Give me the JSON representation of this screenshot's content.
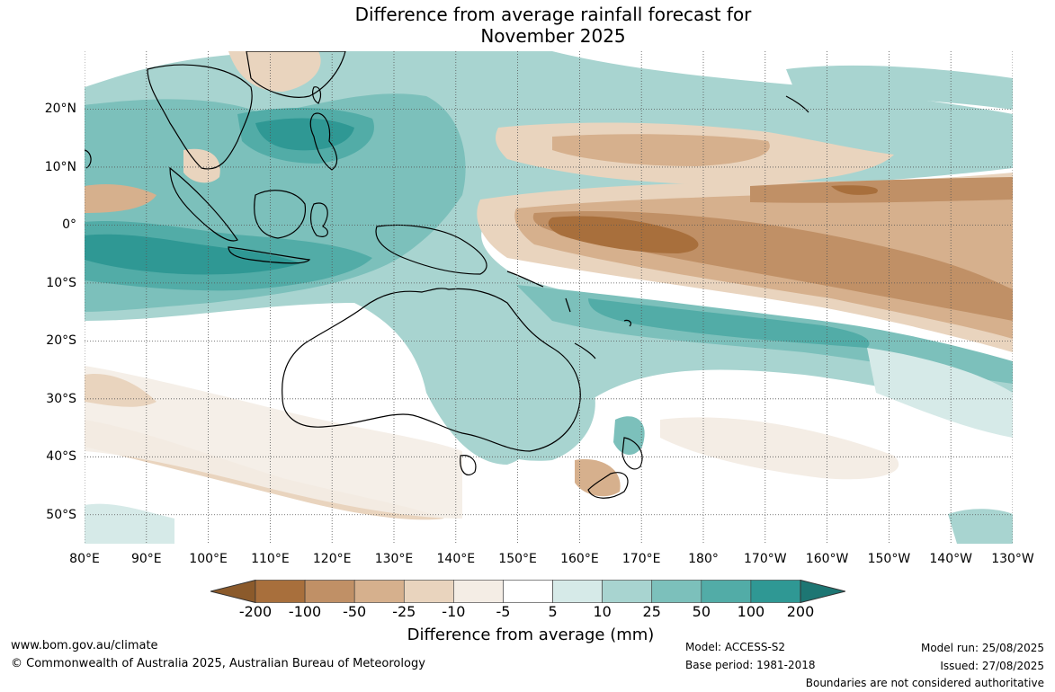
{
  "title": {
    "line1": "Difference from average rainfall forecast for",
    "line2": "November 2025"
  },
  "map": {
    "lon_range_deg": [
      80,
      230
    ],
    "lat_range_deg": [
      -55,
      30
    ],
    "lat_labels": [
      "20°N",
      "10°N",
      "0°",
      "10°S",
      "20°S",
      "30°S",
      "40°S",
      "50°S"
    ],
    "lat_values": [
      20,
      10,
      0,
      -10,
      -20,
      -30,
      -40,
      -50
    ],
    "lon_labels": [
      "80°E",
      "90°E",
      "100°E",
      "110°E",
      "120°E",
      "130°E",
      "140°E",
      "150°E",
      "160°E",
      "170°E",
      "180°",
      "170°W",
      "160°W",
      "150°W",
      "140°W",
      "130°W"
    ],
    "lon_values": [
      80,
      90,
      100,
      110,
      120,
      130,
      140,
      150,
      160,
      170,
      180,
      190,
      200,
      210,
      220,
      230
    ],
    "gridlines": "dotted"
  },
  "colorbar": {
    "ticks": [
      "-200",
      "-100",
      "-50",
      "-25",
      "-10",
      "-5",
      "5",
      "10",
      "25",
      "50",
      "100",
      "200"
    ],
    "colors": [
      "#8b5a2b",
      "#a86f3c",
      "#c09066",
      "#d6b08d",
      "#e9d4be",
      "#f4ede5",
      "#ffffff",
      "#d6eae8",
      "#a8d4d0",
      "#7cc0bb",
      "#52aca7",
      "#2f9894",
      "#1d7673"
    ],
    "label": "Difference from average (mm)"
  },
  "footer": {
    "url": "www.bom.gov.au/climate",
    "copyright": "© Commonwealth of Australia 2025, Australian Bureau of Meteorology",
    "model": "Model: ACCESS-S2",
    "base_period": "Base period: 1981-2018",
    "model_run": "Model run: 25/08/2025",
    "issued": "Issued: 27/08/2025",
    "disclaimer": "Boundaries are not considered authoritative"
  }
}
